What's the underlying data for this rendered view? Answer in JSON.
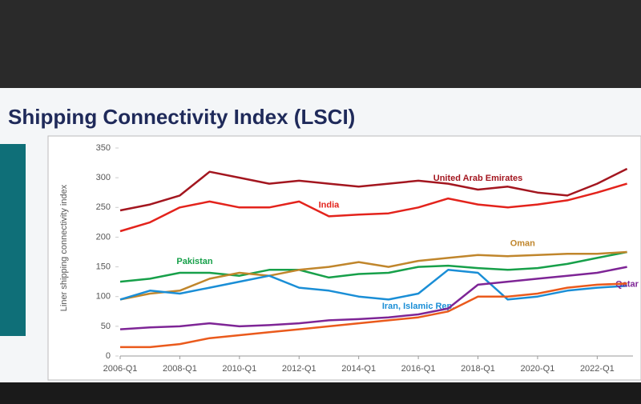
{
  "chart_data": {
    "type": "line",
    "title": "Shipping Connectivity Index (LSCI)",
    "y_label": "Liner shipping connectivity index",
    "x": [
      2006,
      2007,
      2008,
      2009,
      2010,
      2011,
      2012,
      2013,
      2014,
      2015,
      2016,
      2017,
      2018,
      2019,
      2020,
      2021,
      2022,
      2023
    ],
    "xlim": [
      2006,
      2023.2
    ],
    "xticks": [
      {
        "value": 2006,
        "label": "2006-Q1"
      },
      {
        "value": 2008,
        "label": "2008-Q1"
      },
      {
        "value": 2010,
        "label": "2010-Q1"
      },
      {
        "value": 2012,
        "label": "2012-Q1"
      },
      {
        "value": 2014,
        "label": "2014-Q1"
      },
      {
        "value": 2016,
        "label": "2016-Q1"
      },
      {
        "value": 2018,
        "label": "2018-Q1"
      },
      {
        "value": 2020,
        "label": "2020-Q1"
      },
      {
        "value": 2022,
        "label": "2022-Q1"
      }
    ],
    "ylim": [
      0,
      350
    ],
    "yticks": [
      0,
      50,
      100,
      150,
      200,
      250,
      300,
      350
    ],
    "series": [
      {
        "name": "United Arab Emirates",
        "color": "#a3161f",
        "values": [
          245,
          255,
          270,
          310,
          300,
          290,
          295,
          290,
          285,
          290,
          295,
          290,
          280,
          285,
          275,
          270,
          290,
          315
        ]
      },
      {
        "name": "India",
        "color": "#e3231c",
        "values": [
          210,
          225,
          250,
          260,
          250,
          250,
          260,
          235,
          238,
          240,
          250,
          265,
          255,
          250,
          255,
          262,
          275,
          290
        ]
      },
      {
        "name": "Pakistan",
        "color": "#17a04a",
        "values": [
          125,
          130,
          140,
          140,
          135,
          145,
          145,
          132,
          138,
          140,
          150,
          152,
          148,
          145,
          148,
          155,
          165,
          175
        ]
      },
      {
        "name": "Oman",
        "color": "#c0862c",
        "values": [
          95,
          105,
          110,
          130,
          140,
          135,
          145,
          150,
          158,
          150,
          160,
          165,
          170,
          168,
          170,
          172,
          172,
          175
        ]
      },
      {
        "name": "Iran, Islamic Rep.",
        "color": "#1a8ed6",
        "values": [
          95,
          110,
          105,
          115,
          125,
          135,
          115,
          110,
          100,
          95,
          105,
          145,
          140,
          95,
          100,
          110,
          115,
          118
        ]
      },
      {
        "name": "Qatar",
        "color": "#7e2596",
        "values": [
          45,
          48,
          50,
          55,
          50,
          52,
          55,
          60,
          62,
          65,
          70,
          80,
          120,
          125,
          130,
          135,
          140,
          150
        ]
      },
      {
        "color": "#ea5a1c",
        "values": [
          15,
          15,
          20,
          30,
          35,
          40,
          45,
          50,
          55,
          60,
          65,
          75,
          100,
          100,
          105,
          115,
          120,
          122
        ]
      }
    ]
  }
}
